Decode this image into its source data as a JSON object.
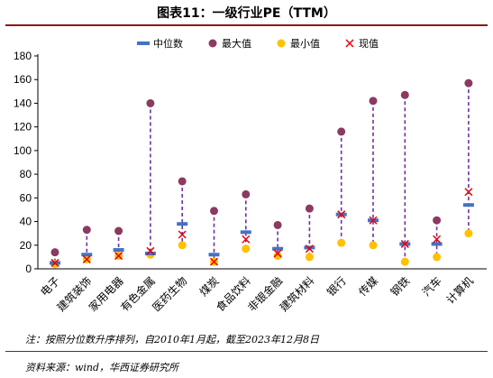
{
  "page": {
    "title": "图表11：一级行业PE（TTM）",
    "note": "注：按照分位数升序排列，自2010年1月起，截至2023年12月8日",
    "source": "资料来源：wind，华西证券研究所"
  },
  "colors": {
    "median": "#4472c4",
    "max": "#8b3a62",
    "min": "#ffc000",
    "current": "#e8000b",
    "range_line": "#7030a0",
    "rule": "#8a1a1a"
  },
  "chart_data": {
    "type": "scatter",
    "title": "",
    "xlabel": "",
    "ylabel": "",
    "ylim": [
      0,
      180
    ],
    "yticks": [
      0,
      20,
      40,
      60,
      80,
      100,
      120,
      140,
      160,
      180
    ],
    "grid": false,
    "legend_position": "top",
    "legend": [
      "中位数",
      "最大值",
      "最小值",
      "现值"
    ],
    "categories": [
      "电子",
      "建筑装饰",
      "家用电器",
      "有色金属",
      "医药生物",
      "煤炭",
      "食品饮料",
      "非银金融",
      "建筑材料",
      "银行",
      "传媒",
      "钢铁",
      "汽车",
      "计算机"
    ],
    "series": [
      {
        "name": "中位数",
        "values": [
          5,
          12,
          16,
          13,
          38,
          12,
          31,
          17,
          18,
          46,
          41,
          21,
          21,
          54
        ]
      },
      {
        "name": "最大值",
        "values": [
          14,
          33,
          32,
          140,
          74,
          49,
          63,
          37,
          51,
          116,
          142,
          147,
          41,
          157
        ]
      },
      {
        "name": "最小值",
        "values": [
          4,
          8,
          11,
          12,
          20,
          6,
          17,
          11,
          10,
          22,
          20,
          6,
          10,
          30
        ]
      },
      {
        "name": "现值",
        "values": [
          5,
          8,
          11,
          15,
          29,
          6,
          25,
          13,
          17,
          46,
          41,
          21,
          25,
          65
        ]
      }
    ]
  }
}
